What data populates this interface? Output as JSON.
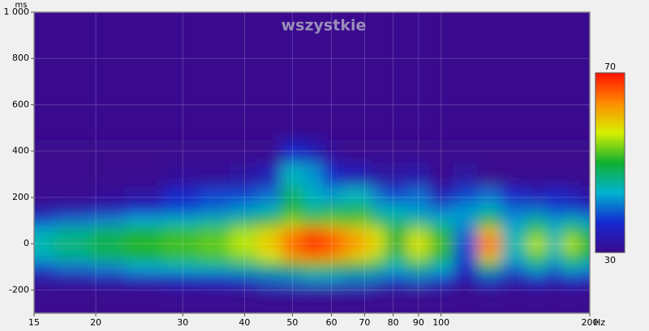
{
  "chart_data": {
    "type": "heatmap",
    "title": "wszystkie",
    "y_label": "ms",
    "x_unit": "Hz",
    "x_log": true,
    "grid": true,
    "x": [
      15,
      18,
      21,
      25,
      30,
      35,
      40,
      45,
      50,
      55,
      60,
      65,
      70,
      75,
      80,
      90,
      100,
      112,
      125,
      140,
      158,
      170,
      182,
      200
    ],
    "y": [
      -250,
      -200,
      -150,
      -100,
      -50,
      0,
      50,
      100,
      150,
      200,
      300,
      400
    ],
    "z": [
      [
        30,
        30,
        30,
        30,
        30,
        30,
        30,
        30,
        30,
        30,
        30,
        30,
        30,
        30,
        30,
        30,
        30,
        30,
        30,
        30,
        30,
        30,
        30,
        30
      ],
      [
        30,
        30,
        30,
        30,
        31,
        31,
        31,
        32,
        32,
        32,
        32,
        32,
        32,
        31,
        31,
        31,
        31,
        30,
        31,
        30,
        31,
        30,
        31,
        30
      ],
      [
        32,
        33,
        34,
        35,
        36,
        37,
        38,
        40,
        41,
        42,
        42,
        41,
        41,
        40,
        38,
        40,
        38,
        33,
        38,
        34,
        37,
        34,
        37,
        35
      ],
      [
        38,
        40,
        41,
        43,
        44,
        45,
        46,
        48,
        50,
        52,
        51,
        50,
        49,
        47,
        44,
        47,
        44,
        36,
        48,
        40,
        45,
        40,
        45,
        42
      ],
      [
        44,
        46,
        48,
        50,
        51,
        52,
        54,
        57,
        62,
        65,
        63,
        60,
        58,
        55,
        48,
        55,
        50,
        38,
        60,
        44,
        52,
        44,
        52,
        48
      ],
      [
        45,
        47,
        49,
        51,
        52,
        53,
        56,
        60,
        66,
        70,
        68,
        64,
        62,
        58,
        50,
        58,
        52,
        38,
        66,
        45,
        56,
        45,
        56,
        50
      ],
      [
        44,
        46,
        48,
        50,
        51,
        52,
        55,
        58,
        63,
        66,
        64,
        61,
        59,
        56,
        50,
        55,
        50,
        40,
        60,
        44,
        52,
        44,
        52,
        47
      ],
      [
        38,
        40,
        41,
        43,
        44,
        45,
        47,
        50,
        54,
        52,
        53,
        52,
        53,
        48,
        46,
        46,
        44,
        42,
        50,
        42,
        46,
        42,
        45,
        42
      ],
      [
        32,
        33,
        34,
        36,
        38,
        40,
        42,
        44,
        50,
        46,
        48,
        48,
        49,
        44,
        44,
        42,
        40,
        42,
        44,
        40,
        40,
        38,
        38,
        36
      ],
      [
        30,
        30,
        31,
        32,
        36,
        38,
        38,
        40,
        48,
        44,
        42,
        44,
        44,
        40,
        38,
        40,
        34,
        38,
        40,
        36,
        34,
        36,
        34,
        32
      ],
      [
        30,
        30,
        30,
        30,
        31,
        31,
        32,
        34,
        44,
        42,
        36,
        34,
        34,
        32,
        32,
        33,
        30,
        32,
        30,
        30,
        30,
        30,
        30,
        30
      ],
      [
        30,
        30,
        30,
        30,
        30,
        30,
        30,
        30,
        36,
        34,
        31,
        30,
        30,
        30,
        30,
        30,
        30,
        30,
        30,
        30,
        30,
        30,
        30,
        30
      ]
    ],
    "zlim": [
      30,
      70
    ],
    "colorscale": [
      "#3a0a8e",
      "#1428d0",
      "#00b4d0",
      "#10b030",
      "#d8f000",
      "#ff8a00",
      "#ff1000"
    ],
    "xlim": [
      15,
      200
    ],
    "xticks": [
      15,
      20,
      30,
      40,
      50,
      60,
      70,
      80,
      90,
      100,
      200
    ],
    "ylim": [
      -300,
      1000
    ],
    "yticks": [
      -200,
      0,
      200,
      400,
      600,
      800,
      {
        "value": 1000,
        "label": "1 000"
      }
    ]
  }
}
